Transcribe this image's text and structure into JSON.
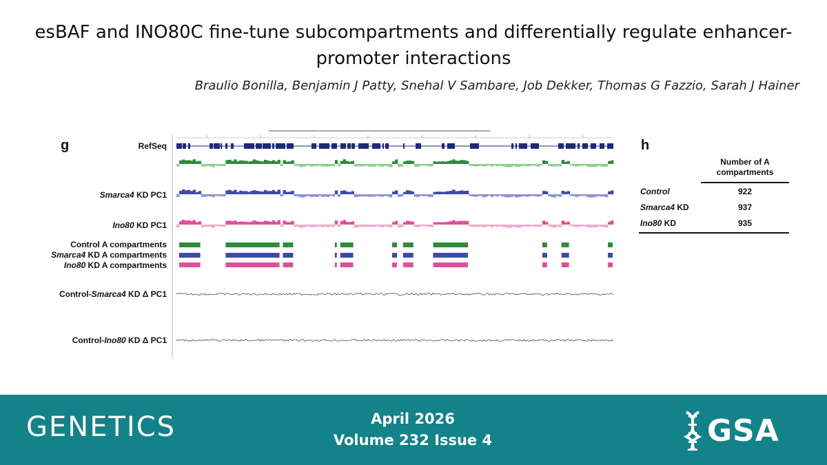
{
  "title": {
    "line1": "esBAF and INO80C fine-tune subcompartments and differentially regulate enhancer-",
    "line2": "promoter interactions"
  },
  "authors": "Braulio Bonilla, Benjamin J Patty, Snehal V Sambare, Job Dekker, Thomas G Fazzio, Sarah J Hainer",
  "figure": {
    "panel_g_label": "g",
    "panel_h_label": "h",
    "tracks": {
      "refseq": "RefSeq",
      "smarca4_pc1_gene": "Smarca4",
      "smarca4_pc1_rest": " KD PC1",
      "ino80_pc1_gene": "Ino80",
      "ino80_pc1_rest": " KD PC1",
      "control_a": "Control A compartments",
      "smarca4_a_gene": "Smarca4",
      "smarca4_a_rest": " KD A compartments",
      "ino80_a_gene": "Ino80",
      "ino80_a_rest": " KD A compartments",
      "delta_smarca4_pre": "Control-",
      "delta_smarca4_gene": "Smarca4",
      "delta_smarca4_rest": " KD Δ PC1",
      "delta_ino80_pre": "Control-",
      "delta_ino80_gene": "Ino80",
      "delta_ino80_rest": " KD Δ PC1"
    },
    "colors": {
      "control": "#2e8b3e",
      "control_light": "#8fcf8f",
      "smarca4": "#3f4aa8",
      "smarca4_light": "#8e92d0",
      "ino80": "#e0509a",
      "ino80_light": "#f2a8cf",
      "refseq": "#1e2a78"
    },
    "table": {
      "header": "Number of A compartments",
      "rows": [
        {
          "label_gene": "Control",
          "label_rest": "",
          "value": "922"
        },
        {
          "label_gene": "Smarca4",
          "label_rest": " KD",
          "value": "937"
        },
        {
          "label_gene": "Ino80",
          "label_rest": " KD",
          "value": "935"
        }
      ]
    }
  },
  "footer": {
    "journal": "GENETICS",
    "issue_date": "April 2026",
    "issue_volume": "Volume 232 Issue 4",
    "publisher": "GSA"
  }
}
